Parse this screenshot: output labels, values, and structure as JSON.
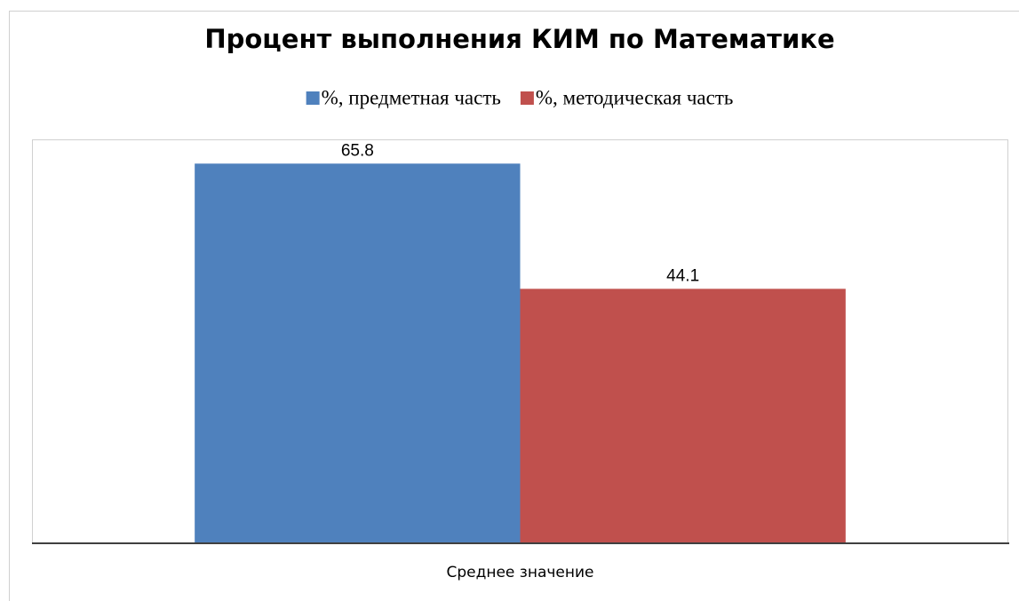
{
  "chart_data": {
    "type": "bar",
    "title": "Процент выполнения КИМ по Математике",
    "categories": [
      "Среднее значение"
    ],
    "series": [
      {
        "name": "%, предметная часть",
        "color": "#4f81bd",
        "values": [
          65.8
        ]
      },
      {
        "name": "%, методическая часть",
        "color": "#c0504d",
        "values": [
          44.1
        ]
      }
    ],
    "ylim": [
      0,
      70
    ],
    "legend": "top"
  }
}
